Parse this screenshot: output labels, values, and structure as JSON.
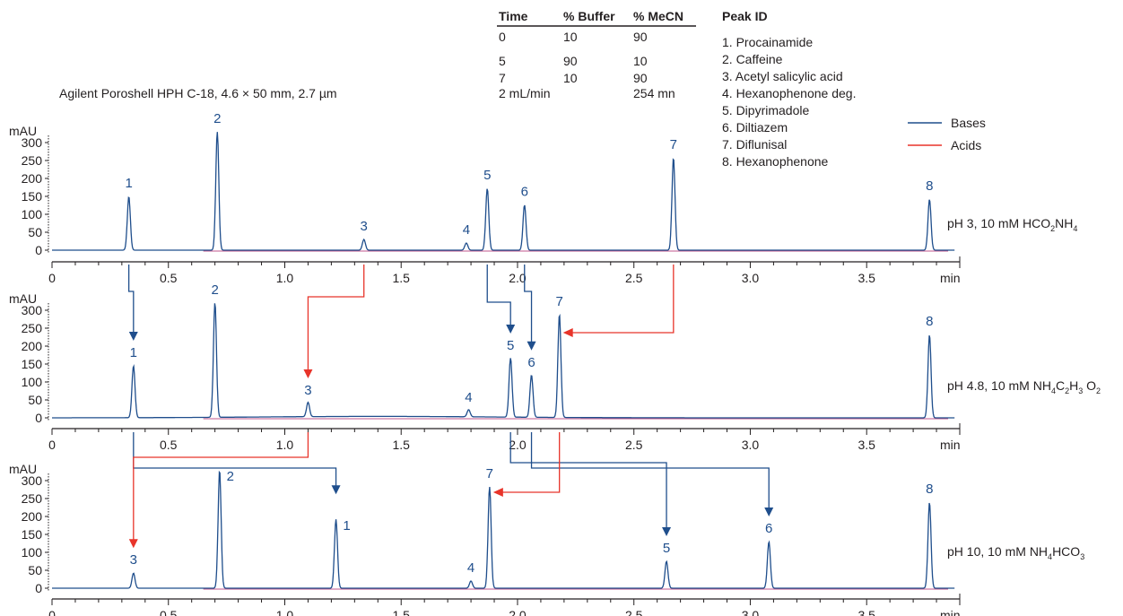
{
  "column_title": "Agilent Poroshell HPH C-18, 4.6 × 50 mm, 2.7 µm",
  "gradient_table": {
    "headers": [
      "Time",
      "% Buffer",
      "% MeCN"
    ],
    "rows": [
      [
        "0",
        "10",
        "90"
      ],
      [
        "5",
        "90",
        "10"
      ],
      [
        "7",
        "10",
        "90"
      ]
    ],
    "flow": "2 mL/min",
    "wavelength": "254 mn"
  },
  "peak_id": {
    "title": "Peak ID",
    "items": [
      "1. Procainamide",
      "2. Caffeine",
      "3. Acetyl salicylic acid",
      "4. Hexanophenone deg.",
      "5. Dipyrimadole",
      "6. Diltiazem",
      "7. Diflunisal",
      "8. Hexanophenone"
    ]
  },
  "legend": [
    {
      "name": "Bases",
      "color": "#1f4e8c"
    },
    {
      "name": "Acids",
      "color": "#e8342a"
    }
  ],
  "colors": {
    "trace": "#1f4e8c",
    "baseline": "#c0578c",
    "base_arrow": "#1f4e8c",
    "acid_arrow": "#e8342a",
    "axis": "#231f20"
  },
  "chart_data": [
    {
      "type": "line",
      "condition": {
        "main": "pH 3, 10 mM HCO",
        "sub1": "2",
        "mid": "NH",
        "sub2": "4"
      },
      "ylabel": "mAU",
      "xlabel": "min",
      "ylim": [
        0,
        300
      ],
      "yticks": [
        0,
        50,
        100,
        150,
        200,
        250,
        300
      ],
      "xlim": [
        0,
        3.9
      ],
      "xticks": [
        "0",
        "0.5",
        "1.0",
        "1.5",
        "2.0",
        "2.5",
        "3.0",
        "3.5"
      ],
      "peaks": [
        {
          "label": "1",
          "x": 0.33,
          "y": 150
        },
        {
          "label": "2",
          "x": 0.71,
          "y": 330
        },
        {
          "label": "3",
          "x": 1.34,
          "y": 30
        },
        {
          "label": "4",
          "x": 1.78,
          "y": 20
        },
        {
          "label": "5",
          "x": 1.87,
          "y": 172
        },
        {
          "label": "6",
          "x": 2.03,
          "y": 126
        },
        {
          "label": "7",
          "x": 2.67,
          "y": 258
        },
        {
          "label": "8",
          "x": 3.77,
          "y": 142
        }
      ]
    },
    {
      "type": "line",
      "condition": {
        "main": "pH 4.8, 10 mM NH",
        "sub1": "4",
        "mid": "C",
        "sub2": "2",
        "mid2": "H",
        "sub3": "3",
        "mid3": " O",
        "sub4": "2"
      },
      "ylabel": "mAU",
      "xlabel": "min",
      "ylim": [
        0,
        300
      ],
      "yticks": [
        0,
        50,
        100,
        150,
        200,
        250,
        300
      ],
      "xlim": [
        0,
        3.9
      ],
      "xticks": [
        "0",
        "0.5",
        "1.0",
        "1.5",
        "2.0",
        "2.5",
        "3.0",
        "3.5"
      ],
      "peaks": [
        {
          "label": "1",
          "x": 0.35,
          "y": 145
        },
        {
          "label": "2",
          "x": 0.7,
          "y": 320
        },
        {
          "label": "3",
          "x": 1.1,
          "y": 40
        },
        {
          "label": "4",
          "x": 1.79,
          "y": 20
        },
        {
          "label": "5",
          "x": 1.97,
          "y": 165
        },
        {
          "label": "6",
          "x": 2.06,
          "y": 118
        },
        {
          "label": "7",
          "x": 2.18,
          "y": 288
        },
        {
          "label": "8",
          "x": 3.77,
          "y": 232
        }
      ]
    },
    {
      "type": "line",
      "condition": {
        "main": "pH 10, 10 mM NH",
        "sub1": "4",
        "mid": "HCO",
        "sub2": "3"
      },
      "ylabel": "mAU",
      "xlabel": "min",
      "ylim": [
        0,
        300
      ],
      "yticks": [
        0,
        50,
        100,
        150,
        200,
        250,
        300
      ],
      "xlim": [
        0,
        3.9
      ],
      "xticks": [
        "0",
        "0.5",
        "1.0",
        "1.5",
        "2.0",
        "2.5",
        "3.0",
        "3.5"
      ],
      "peaks": [
        {
          "label": "3",
          "x": 0.35,
          "y": 42
        },
        {
          "label": "2",
          "x": 0.72,
          "y": 330
        },
        {
          "label": "1",
          "x": 1.22,
          "y": 192
        },
        {
          "label": "4",
          "x": 1.8,
          "y": 20
        },
        {
          "label": "7",
          "x": 1.88,
          "y": 283
        },
        {
          "label": "5",
          "x": 2.64,
          "y": 75
        },
        {
          "label": "6",
          "x": 3.08,
          "y": 130
        },
        {
          "label": "8",
          "x": 3.77,
          "y": 240
        }
      ]
    }
  ],
  "shift_arrows": [
    {
      "kind": "base",
      "peak": "1",
      "from": 0.33,
      "to": 0.35,
      "panel": 0
    },
    {
      "kind": "acid",
      "peak": "3",
      "from": 1.34,
      "to": 1.1,
      "panel": 0
    },
    {
      "kind": "base",
      "peak": "5",
      "from": 1.87,
      "to": 1.97,
      "panel": 0
    },
    {
      "kind": "base",
      "peak": "6",
      "from": 2.03,
      "to": 2.06,
      "panel": 0
    },
    {
      "kind": "acid",
      "peak": "7",
      "from": 2.67,
      "to": 2.18,
      "panel": 0
    },
    {
      "kind": "base",
      "peak": "1",
      "from": 0.35,
      "to": 1.22,
      "panel": 1
    },
    {
      "kind": "acid",
      "peak": "3",
      "from": 1.1,
      "to": 0.35,
      "panel": 1
    },
    {
      "kind": "base",
      "peak": "5",
      "from": 1.97,
      "to": 2.64,
      "panel": 1
    },
    {
      "kind": "base",
      "peak": "6",
      "from": 2.06,
      "to": 3.08,
      "panel": 1
    },
    {
      "kind": "acid",
      "peak": "7",
      "from": 2.18,
      "to": 1.88,
      "panel": 1
    }
  ]
}
